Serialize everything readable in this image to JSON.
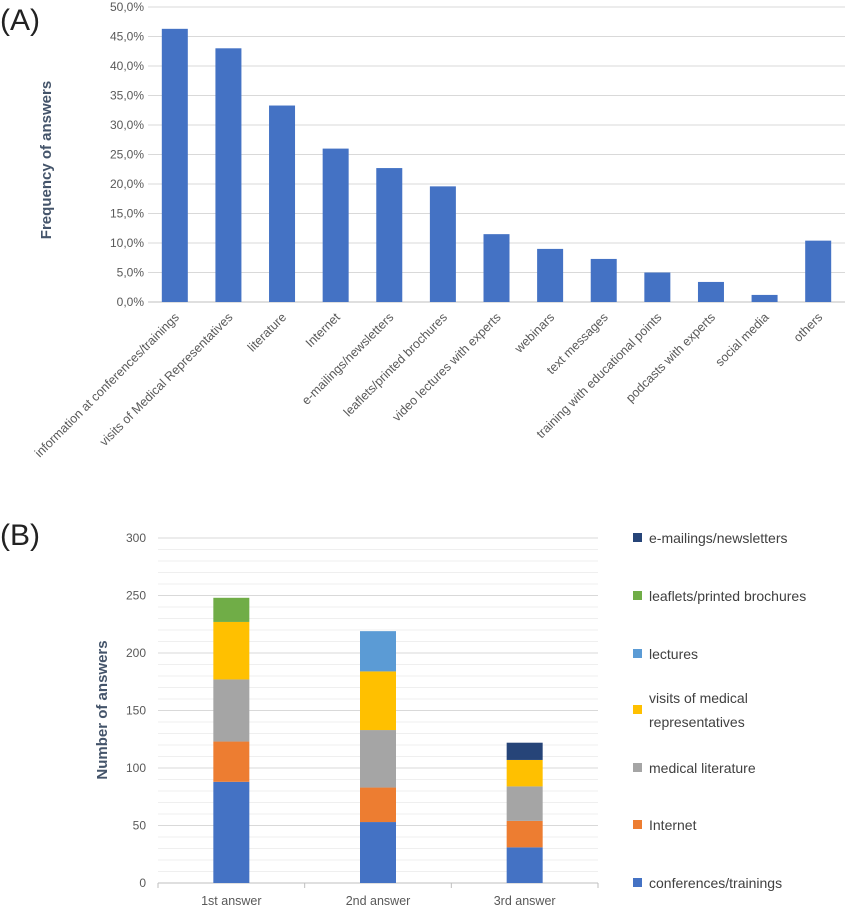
{
  "chart_data": [
    {
      "type": "bar",
      "panel_label": "(A)",
      "title": "",
      "xlabel": "",
      "ylabel": "Frequency of answers",
      "ylim": [
        0,
        50
      ],
      "yticks": [
        "0,0%",
        "5,0%",
        "10,0%",
        "15,0%",
        "20,0%",
        "25,0%",
        "30,0%",
        "35,0%",
        "40,0%",
        "45,0%",
        "50,0%"
      ],
      "categories": [
        "information at conferences/trainings",
        "visits of Medical Representatives",
        "literature",
        "Internet",
        "e-mailings/newsletters",
        "leaflets/printed brochures",
        "video lectures with experts",
        "webinars",
        "text messages",
        "training with educational points",
        "podcasts with experts",
        "social media",
        "others"
      ],
      "values": [
        46.3,
        43.0,
        33.3,
        26.0,
        22.7,
        19.6,
        11.5,
        9.0,
        7.3,
        5.0,
        3.4,
        1.2,
        10.4
      ],
      "color": "#4472c4"
    },
    {
      "type": "bar",
      "stacked": true,
      "panel_label": "(B)",
      "title": "",
      "xlabel": "",
      "ylabel": "Number of answers",
      "ylim": [
        0,
        300
      ],
      "yticks": [
        "0",
        "50",
        "100",
        "150",
        "200",
        "250",
        "300"
      ],
      "categories": [
        "1st answer",
        "2nd answer",
        "3rd answer"
      ],
      "legend_position": "right",
      "series": [
        {
          "name": "conferences/trainings",
          "color": "#4472c4",
          "values": [
            88,
            53,
            31
          ]
        },
        {
          "name": "Internet",
          "color": "#ed7d31",
          "values": [
            35,
            30,
            23
          ]
        },
        {
          "name": "medical literature",
          "color": "#a5a5a5",
          "values": [
            54,
            50,
            30
          ]
        },
        {
          "name": "visits of medical representatives",
          "color": "#ffc000",
          "values": [
            50,
            51,
            23
          ]
        },
        {
          "name": "lectures",
          "color": "#5b9bd5",
          "values": [
            0,
            35,
            0
          ]
        },
        {
          "name": "leaflets/printed brochures",
          "color": "#70ad47",
          "values": [
            21,
            0,
            0
          ]
        },
        {
          "name": "e-mailings/newsletters",
          "color": "#264478",
          "values": [
            0,
            0,
            15
          ]
        }
      ],
      "legend_order": [
        {
          "name": "e-mailings/newsletters",
          "lines": [
            "e-mailings/newsletters"
          ]
        },
        {
          "name": "leaflets/printed brochures",
          "lines": [
            "leaflets/printed brochures"
          ]
        },
        {
          "name": "lectures",
          "lines": [
            "lectures"
          ]
        },
        {
          "name": "visits of medical representatives",
          "lines": [
            "visits of medical",
            "representatives"
          ]
        },
        {
          "name": "medical literature",
          "lines": [
            "medical literature"
          ]
        },
        {
          "name": "Internet",
          "lines": [
            "Internet"
          ]
        },
        {
          "name": "conferences/trainings",
          "lines": [
            "conferences/trainings"
          ]
        }
      ]
    }
  ]
}
